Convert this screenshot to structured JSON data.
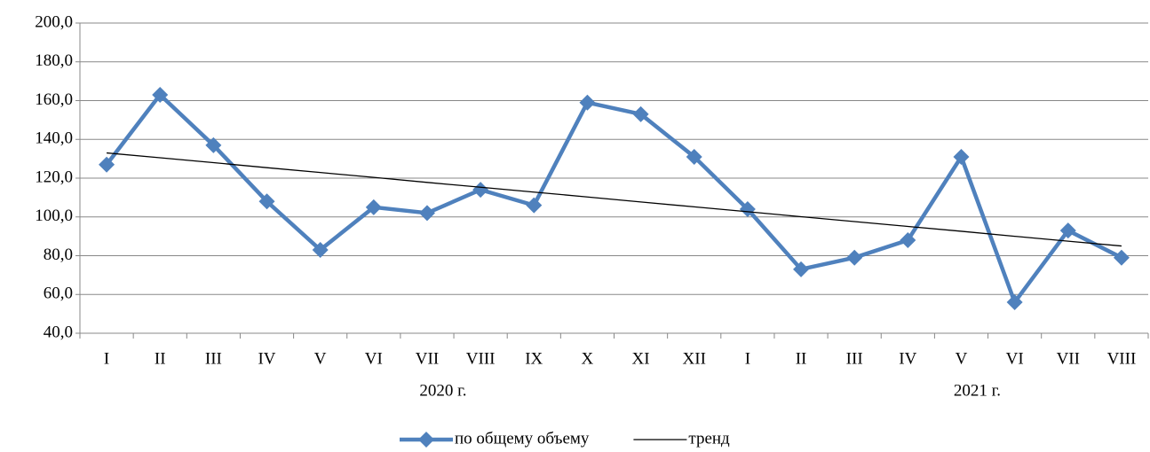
{
  "chart_data": {
    "type": "line",
    "categories": [
      "I",
      "II",
      "III",
      "IV",
      "V",
      "VI",
      "VII",
      "VIII",
      "IX",
      "X",
      "XI",
      "XII",
      "I",
      "II",
      "III",
      "IV",
      "V",
      "VI",
      "VII",
      "VIII"
    ],
    "groups": [
      {
        "name": "2020 г.",
        "count": 12
      },
      {
        "name": "2021 г.",
        "count": 8
      }
    ],
    "series": [
      {
        "name": "по общему объему",
        "color": "#4f81bd",
        "values": [
          127,
          163,
          137,
          108,
          83,
          105,
          102,
          114,
          106,
          159,
          153,
          131,
          104,
          73,
          79,
          88,
          131,
          56,
          93,
          79
        ]
      },
      {
        "name": "тренд",
        "color": "#000000",
        "values": [
          133,
          130.5,
          128,
          125.4,
          122.9,
          120.4,
          117.8,
          115.3,
          112.8,
          110.3,
          107.7,
          105.2,
          102.7,
          100.1,
          97.6,
          95.1,
          92.6,
          90,
          87.5,
          85
        ]
      }
    ],
    "ylim": [
      40,
      200
    ],
    "yticks": [
      {
        "value": 40,
        "label": "40,0"
      },
      {
        "value": 60,
        "label": "60,0"
      },
      {
        "value": 80,
        "label": "80,0"
      },
      {
        "value": 100,
        "label": "100,0"
      },
      {
        "value": 120,
        "label": "120,0"
      },
      {
        "value": 140,
        "label": "140,0"
      },
      {
        "value": 160,
        "label": "160,0"
      },
      {
        "value": 180,
        "label": "180,0"
      },
      {
        "value": 200,
        "label": "200,0"
      }
    ],
    "grid": true,
    "legend": "bottom"
  }
}
